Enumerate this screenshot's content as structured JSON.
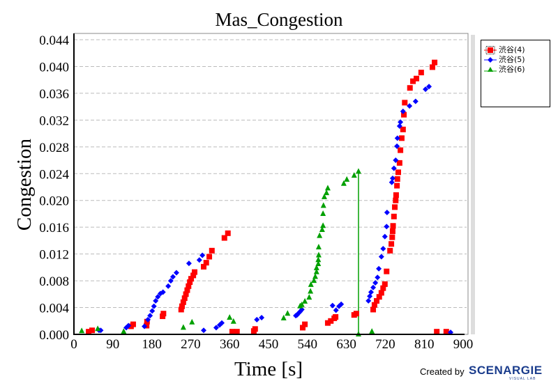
{
  "chart_data": {
    "type": "scatter",
    "title": "Mas_Congestion",
    "xlabel": "Time [s]",
    "ylabel": "Congestion",
    "xlim": [
      0,
      900
    ],
    "ylim": [
      0,
      0.044
    ],
    "xticks": [
      "0",
      "90",
      "180",
      "270",
      "360",
      "450",
      "540",
      "630",
      "720",
      "810",
      "900"
    ],
    "yticks": [
      "0.000",
      "0.004",
      "0.008",
      "0.012",
      "0.016",
      "0.020",
      "0.024",
      "0.028",
      "0.032",
      "0.036",
      "0.040",
      "0.044"
    ],
    "grid": "horizontal-dashed",
    "legend_position": "right",
    "series": [
      {
        "name": "渋谷(4)",
        "color": "#ff0000",
        "marker": "square",
        "points": [
          [
            34,
            0.0004
          ],
          [
            42,
            0.0006
          ],
          [
            132,
            0.0012
          ],
          [
            137,
            0.0015
          ],
          [
            168,
            0.0013
          ],
          [
            169,
            0.0019
          ],
          [
            205,
            0.0027
          ],
          [
            207,
            0.0031
          ],
          [
            248,
            0.0037
          ],
          [
            250,
            0.0042
          ],
          [
            253,
            0.0048
          ],
          [
            256,
            0.0054
          ],
          [
            259,
            0.006
          ],
          [
            262,
            0.0066
          ],
          [
            265,
            0.0072
          ],
          [
            268,
            0.0078
          ],
          [
            271,
            0.0083
          ],
          [
            276,
            0.0088
          ],
          [
            279,
            0.0093
          ],
          [
            300,
            0.0101
          ],
          [
            306,
            0.0107
          ],
          [
            313,
            0.0116
          ],
          [
            319,
            0.0125
          ],
          [
            348,
            0.0144
          ],
          [
            356,
            0.0151
          ],
          [
            366,
            0.0004
          ],
          [
            377,
            0.0004
          ],
          [
            416,
            0.0005
          ],
          [
            419,
            0.0008
          ],
          [
            529,
            0.001
          ],
          [
            534,
            0.0015
          ],
          [
            587,
            0.0017
          ],
          [
            594,
            0.002
          ],
          [
            602,
            0.0024
          ],
          [
            605,
            0.0026
          ],
          [
            648,
            0.0029
          ],
          [
            653,
            0.0031
          ],
          [
            692,
            0.0037
          ],
          [
            695,
            0.0044
          ],
          [
            700,
            0.005
          ],
          [
            706,
            0.0056
          ],
          [
            711,
            0.0062
          ],
          [
            715,
            0.0069
          ],
          [
            719,
            0.0075
          ],
          [
            723,
            0.0094
          ],
          [
            731,
            0.0125
          ],
          [
            734,
            0.0135
          ],
          [
            736,
            0.0145
          ],
          [
            737,
            0.0154
          ],
          [
            738,
            0.0162
          ],
          [
            740,
            0.0176
          ],
          [
            742,
            0.019
          ],
          [
            744,
            0.02
          ],
          [
            745,
            0.0208
          ],
          [
            747,
            0.0222
          ],
          [
            748,
            0.0232
          ],
          [
            750,
            0.0242
          ],
          [
            753,
            0.0256
          ],
          [
            755,
            0.0275
          ],
          [
            758,
            0.0293
          ],
          [
            761,
            0.0306
          ],
          [
            763,
            0.0328
          ],
          [
            765,
            0.0346
          ],
          [
            777,
            0.0368
          ],
          [
            784,
            0.0378
          ],
          [
            792,
            0.0382
          ],
          [
            803,
            0.0391
          ],
          [
            829,
            0.0399
          ],
          [
            834,
            0.0406
          ],
          [
            839,
            0.0004
          ],
          [
            861,
            0.0004
          ]
        ]
      },
      {
        "name": "渋谷(5)",
        "color": "#0000ff",
        "marker": "diamond",
        "points": [
          [
            58,
            0.0006
          ],
          [
            62,
            0.0006
          ],
          [
            121,
            0.001
          ],
          [
            126,
            0.0013
          ],
          [
            163,
            0.0012
          ],
          [
            171,
            0.0022
          ],
          [
            176,
            0.0028
          ],
          [
            181,
            0.0035
          ],
          [
            185,
            0.0042
          ],
          [
            189,
            0.005
          ],
          [
            194,
            0.0056
          ],
          [
            200,
            0.0061
          ],
          [
            206,
            0.0063
          ],
          [
            218,
            0.0072
          ],
          [
            224,
            0.008
          ],
          [
            229,
            0.0086
          ],
          [
            237,
            0.0092
          ],
          [
            266,
            0.0106
          ],
          [
            290,
            0.0111
          ],
          [
            297,
            0.0118
          ],
          [
            300,
            0.0006
          ],
          [
            329,
            0.001
          ],
          [
            337,
            0.0014
          ],
          [
            342,
            0.0017
          ],
          [
            423,
            0.0022
          ],
          [
            434,
            0.0025
          ],
          [
            513,
            0.0028
          ],
          [
            516,
            0.0029
          ],
          [
            520,
            0.0032
          ],
          [
            523,
            0.0034
          ],
          [
            527,
            0.0037
          ],
          [
            598,
            0.0043
          ],
          [
            606,
            0.0036
          ],
          [
            613,
            0.0042
          ],
          [
            618,
            0.0045
          ],
          [
            681,
            0.005
          ],
          [
            684,
            0.0057
          ],
          [
            687,
            0.0063
          ],
          [
            692,
            0.007
          ],
          [
            697,
            0.0077
          ],
          [
            702,
            0.0085
          ],
          [
            705,
            0.0098
          ],
          [
            711,
            0.0116
          ],
          [
            715,
            0.0128
          ],
          [
            719,
            0.0146
          ],
          [
            723,
            0.0161
          ],
          [
            724,
            0.0182
          ],
          [
            735,
            0.0227
          ],
          [
            737,
            0.0233
          ],
          [
            740,
            0.0248
          ],
          [
            744,
            0.026
          ],
          [
            747,
            0.0281
          ],
          [
            748,
            0.0293
          ],
          [
            753,
            0.0311
          ],
          [
            755,
            0.0317
          ],
          [
            761,
            0.0333
          ],
          [
            776,
            0.0341
          ],
          [
            790,
            0.0348
          ],
          [
            813,
            0.0366
          ],
          [
            821,
            0.037
          ],
          [
            871,
            0.0003
          ]
        ]
      },
      {
        "name": "渋谷(6)",
        "color": "#00a000",
        "marker": "triangle",
        "points": [
          [
            18,
            0.0005
          ],
          [
            55,
            0.0008
          ],
          [
            115,
            0.0004
          ],
          [
            253,
            0.001
          ],
          [
            273,
            0.0018
          ],
          [
            360,
            0.0025
          ],
          [
            369,
            0.0019
          ],
          [
            485,
            0.0024
          ],
          [
            494,
            0.0031
          ],
          [
            523,
            0.0042
          ],
          [
            527,
            0.0044
          ],
          [
            534,
            0.0049
          ],
          [
            544,
            0.0055
          ],
          [
            547,
            0.0064
          ],
          [
            548,
            0.0074
          ],
          [
            555,
            0.008
          ],
          [
            558,
            0.0086
          ],
          [
            561,
            0.0093
          ],
          [
            561,
            0.0099
          ],
          [
            565,
            0.0105
          ],
          [
            565,
            0.0111
          ],
          [
            566,
            0.0118
          ],
          [
            566,
            0.013
          ],
          [
            568,
            0.0147
          ],
          [
            574,
            0.0156
          ],
          [
            576,
            0.0162
          ],
          [
            576,
            0.018
          ],
          [
            577,
            0.0192
          ],
          [
            579,
            0.0205
          ],
          [
            584,
            0.0211
          ],
          [
            587,
            0.0218
          ],
          [
            624,
            0.0225
          ],
          [
            631,
            0.0231
          ],
          [
            648,
            0.0237
          ],
          [
            658,
            0.0243
          ],
          [
            658,
            0.0
          ],
          [
            689,
            0.0004
          ]
        ]
      }
    ]
  },
  "footer": {
    "credit": "Created by",
    "logo": "SCENARGIE",
    "logo_sub": "VISUAL LAB"
  }
}
